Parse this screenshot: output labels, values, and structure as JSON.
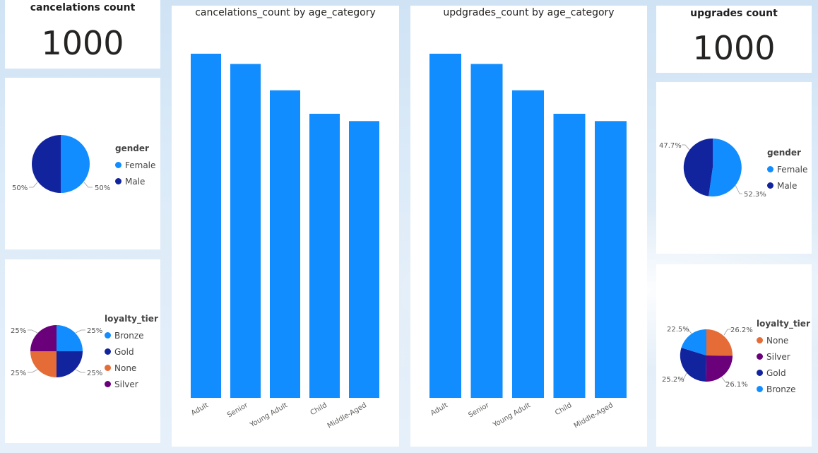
{
  "colors": {
    "bar": "#118DFF",
    "female": "#118DFF",
    "male": "#12239E",
    "bronze": "#118DFF",
    "gold": "#12239E",
    "none": "#E66C37",
    "silver": "#6B007B"
  },
  "kpi_cancel": {
    "title": "cancelations count",
    "value": "1000"
  },
  "kpi_upgrade": {
    "title": "upgrades count",
    "value": "1000"
  },
  "gender_left": {
    "legend_title": "gender",
    "items": [
      "Female",
      "Male"
    ],
    "labels": {
      "female": "50%",
      "male": "50%"
    }
  },
  "gender_right": {
    "legend_title": "gender",
    "items": [
      "Female",
      "Male"
    ],
    "labels": {
      "female": "52.3%",
      "male": "47.7%"
    }
  },
  "loyalty_left": {
    "legend_title": "loyalty_tier",
    "items": [
      "Bronze",
      "Gold",
      "None",
      "Silver"
    ],
    "labels": [
      "25%",
      "25%",
      "25%",
      "25%"
    ]
  },
  "loyalty_right": {
    "legend_title": "loyalty_tier",
    "items": [
      "None",
      "Silver",
      "Gold",
      "Bronze"
    ],
    "labels": [
      "26.2%",
      "26.1%",
      "25.2%",
      "22.5%"
    ]
  },
  "chart_data": [
    {
      "type": "pie",
      "categories": [
        "Female",
        "Male"
      ],
      "values": [
        50,
        50
      ],
      "legend_title": "gender"
    },
    {
      "type": "pie",
      "categories": [
        "Bronze",
        "Gold",
        "None",
        "Silver"
      ],
      "values": [
        25,
        25,
        25,
        25
      ],
      "legend_title": "loyalty_tier"
    },
    {
      "type": "bar",
      "title": "cancelations_count by age_category",
      "categories": [
        "Adult",
        "Senior",
        "Young Adult",
        "Child",
        "Middle-Aged"
      ],
      "values": [
        235,
        228,
        210,
        194,
        189
      ]
    },
    {
      "type": "bar",
      "title": "updgrades_count by age_category",
      "categories": [
        "Adult",
        "Senior",
        "Young Adult",
        "Child",
        "Middle-Aged"
      ],
      "values": [
        235,
        228,
        210,
        194,
        189
      ]
    },
    {
      "type": "pie",
      "categories": [
        "Female",
        "Male"
      ],
      "values": [
        52.3,
        47.7
      ],
      "legend_title": "gender"
    },
    {
      "type": "pie",
      "categories": [
        "None",
        "Silver",
        "Gold",
        "Bronze"
      ],
      "values": [
        26.2,
        26.1,
        25.2,
        22.5
      ],
      "legend_title": "loyalty_tier"
    }
  ]
}
